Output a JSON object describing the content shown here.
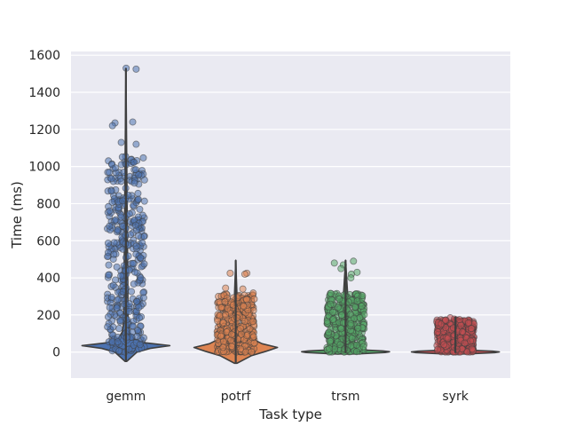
{
  "chart_data": {
    "type": "violin+strip",
    "title": "",
    "xlabel": "Task type",
    "ylabel": "Time (ms)",
    "categories": [
      "gemm",
      "potrf",
      "trsm",
      "syrk"
    ],
    "ylim": [
      -140,
      1620
    ],
    "yticks": [
      0,
      200,
      400,
      600,
      800,
      1000,
      1200,
      1400,
      1600
    ],
    "ytick_labels": [
      "0",
      "200",
      "400",
      "600",
      "800",
      "1000",
      "1200",
      "1400",
      "1600"
    ],
    "grid": true,
    "legend": "none",
    "colors": {
      "gemm": "#4c72b0",
      "potrf": "#dd8452",
      "trsm": "#55a868",
      "syrk": "#c44e52",
      "outline": "#3f3f3f",
      "plot_bg": "#eaeaf2",
      "grid": "#ffffff"
    },
    "series": [
      {
        "category": "gemm",
        "range": [
          -50,
          1530
        ],
        "median": 20,
        "dense_range": [
          0,
          1060
        ],
        "violin_profile": [
          [
            -50,
            0.02
          ],
          [
            0,
            0.25
          ],
          [
            20,
            0.55
          ],
          [
            35,
            1.0
          ],
          [
            50,
            0.45
          ],
          [
            70,
            0.18
          ],
          [
            110,
            0.08
          ],
          [
            160,
            0.05
          ],
          [
            1530,
            0.0
          ]
        ],
        "outlier_points": [
          1530,
          1525,
          1240,
          1235,
          1220,
          1130,
          1120
        ]
      },
      {
        "category": "potrf",
        "range": [
          -60,
          495
        ],
        "median": 15,
        "dense_range": [
          0,
          320
        ],
        "violin_profile": [
          [
            -60,
            0.03
          ],
          [
            -20,
            0.35
          ],
          [
            5,
            0.7
          ],
          [
            25,
            0.95
          ],
          [
            45,
            0.6
          ],
          [
            80,
            0.3
          ],
          [
            120,
            0.12
          ],
          [
            160,
            0.05
          ],
          [
            495,
            0.0
          ]
        ],
        "outlier_points": [
          425,
          425,
          420,
          345,
          340
        ]
      },
      {
        "category": "trsm",
        "range": [
          -5,
          495
        ],
        "median": 2,
        "dense_range": [
          0,
          320
        ],
        "violin_profile": [
          [
            -10,
            0.25
          ],
          [
            -2,
            0.9
          ],
          [
            2,
            1.0
          ],
          [
            6,
            0.85
          ],
          [
            12,
            0.35
          ],
          [
            25,
            0.12
          ],
          [
            495,
            0.0
          ]
        ],
        "outlier_points": [
          490,
          480,
          470,
          450,
          430,
          420,
          400
        ]
      },
      {
        "category": "syrk",
        "range": [
          -5,
          190
        ],
        "median": 1,
        "dense_range": [
          0,
          175
        ],
        "violin_profile": [
          [
            -10,
            0.25
          ],
          [
            -3,
            0.9
          ],
          [
            1,
            1.0
          ],
          [
            5,
            0.85
          ],
          [
            10,
            0.35
          ],
          [
            20,
            0.1
          ],
          [
            190,
            0.0
          ]
        ],
        "outlier_points": [
          185,
          178,
          175,
          172
        ]
      }
    ]
  }
}
